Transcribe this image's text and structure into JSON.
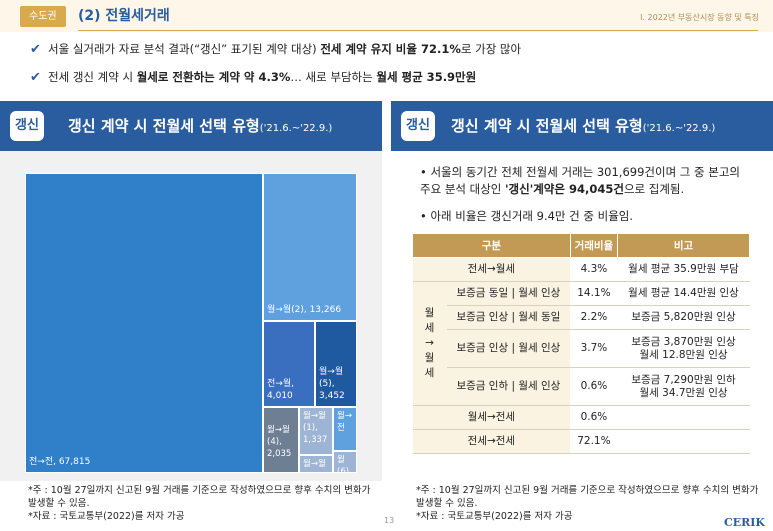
{
  "header": {
    "tag": "수도권",
    "section_title": "(2) 전월세거래",
    "right_text": "Ⅰ. 2022년 부동산시장 동향 및 특징"
  },
  "bullets": [
    {
      "pre": "서울 실거래가 자료 분석 결과(“갱신” 표기된 계약 대상) ",
      "bold": "전세 계약 유지 비율 72.1%",
      "post": "로 가장 많아"
    },
    {
      "pre": "전세 갱신 계약 시 ",
      "bold": "월세로 전환하는 계약 약 4.3%",
      "mid": "… 새로 부담하는 ",
      "bold2": "월세 평균 35.9만원"
    }
  ],
  "banner_left": {
    "badge": "갱신",
    "title": "갱신 계약 시 전월세 선택 유형",
    "date": "('21.6.~'22.9.)"
  },
  "banner_right": {
    "badge": "갱신",
    "title": "갱신 계약 시 전월세 선택 유형",
    "date": "('21.6.~'22.9.)"
  },
  "chart_data": {
    "type": "treemap",
    "items": [
      {
        "label": "전→전, 67,815",
        "value": 67815
      },
      {
        "label": "월→월(2), 13,266",
        "value": 13266
      },
      {
        "label": "전→월, 4,010",
        "value": 4010
      },
      {
        "label": "월→월(5), 3,452",
        "value": 3452
      },
      {
        "label": "월→월(4), 2,035",
        "value": 2035
      },
      {
        "label": "월→월(1), 1,337",
        "value": 1337
      },
      {
        "label": "월→월",
        "value": null
      },
      {
        "label": "월→전",
        "value": null
      },
      {
        "label": "월(6)",
        "value": null
      }
    ],
    "colors": {
      "main": "#2f80c9",
      "light": "#5fa0de",
      "mid": "#3a6fbf",
      "dark": "#1f5aa0",
      "gray": "#6e7f94",
      "pale": "#9eb4d4"
    }
  },
  "right_text": {
    "line1_pre": "서울의 동기간 전체 전월세 거래는 301,699건이며 그 중 본고의 주요 분석 대상인 ",
    "line1_bold": "'갱신'계약은 94,045건",
    "line1_post": "으로 집계됨.",
    "line2": "아래 비율은 갱신거래 9.4만 건 중 비율임."
  },
  "table": {
    "headers": [
      "구분",
      "거래비율",
      "비고"
    ],
    "group_label": "월세 → 월세",
    "rows": [
      {
        "type": "전세→월세",
        "ratio": "4.3%",
        "note": "월세 평균 35.9만원 부담"
      },
      {
        "type": "보증금 동일 | 월세 인상",
        "ratio": "14.1%",
        "note": "월세 평균 14.4만원 인상"
      },
      {
        "type": "보증금 인상 | 월세 동일",
        "ratio": "2.2%",
        "note": "보증금 5,820만원 인상"
      },
      {
        "type": "보증금 인상 | 월세 인상",
        "ratio": "3.7%",
        "note": "보증금 3,870만원 인상",
        "note2": "월세 12.8만원 인상"
      },
      {
        "type": "보증금 인하 | 월세 인상",
        "ratio": "0.6%",
        "note": "보증금 7,290만원 인하",
        "note2": "월세 34.7만원 인상"
      },
      {
        "type": "월세→전세",
        "ratio": "0.6%",
        "note": ""
      },
      {
        "type": "전세→전세",
        "ratio": "72.1%",
        "note": ""
      }
    ]
  },
  "footnote_left": {
    "line1": "*주 : 10월 27일까지 신고된 9월 거래를 기준으로 작성하였으므로 향후 수치의 변화가 발생할 수 있음.",
    "line2": "*자료 : 국토교통부(2022)를 저자 가공"
  },
  "footnote_right": {
    "line1": "*주 : 10월 27일까지 신고된 9월 거래를 기준으로 작성하였으므로 향후 수치의 변화가 발생할 수 있음.",
    "line2": "*자료 : 국토교통부(2022)를 저자 가공"
  },
  "page_number": "13",
  "logo": "CERIK"
}
